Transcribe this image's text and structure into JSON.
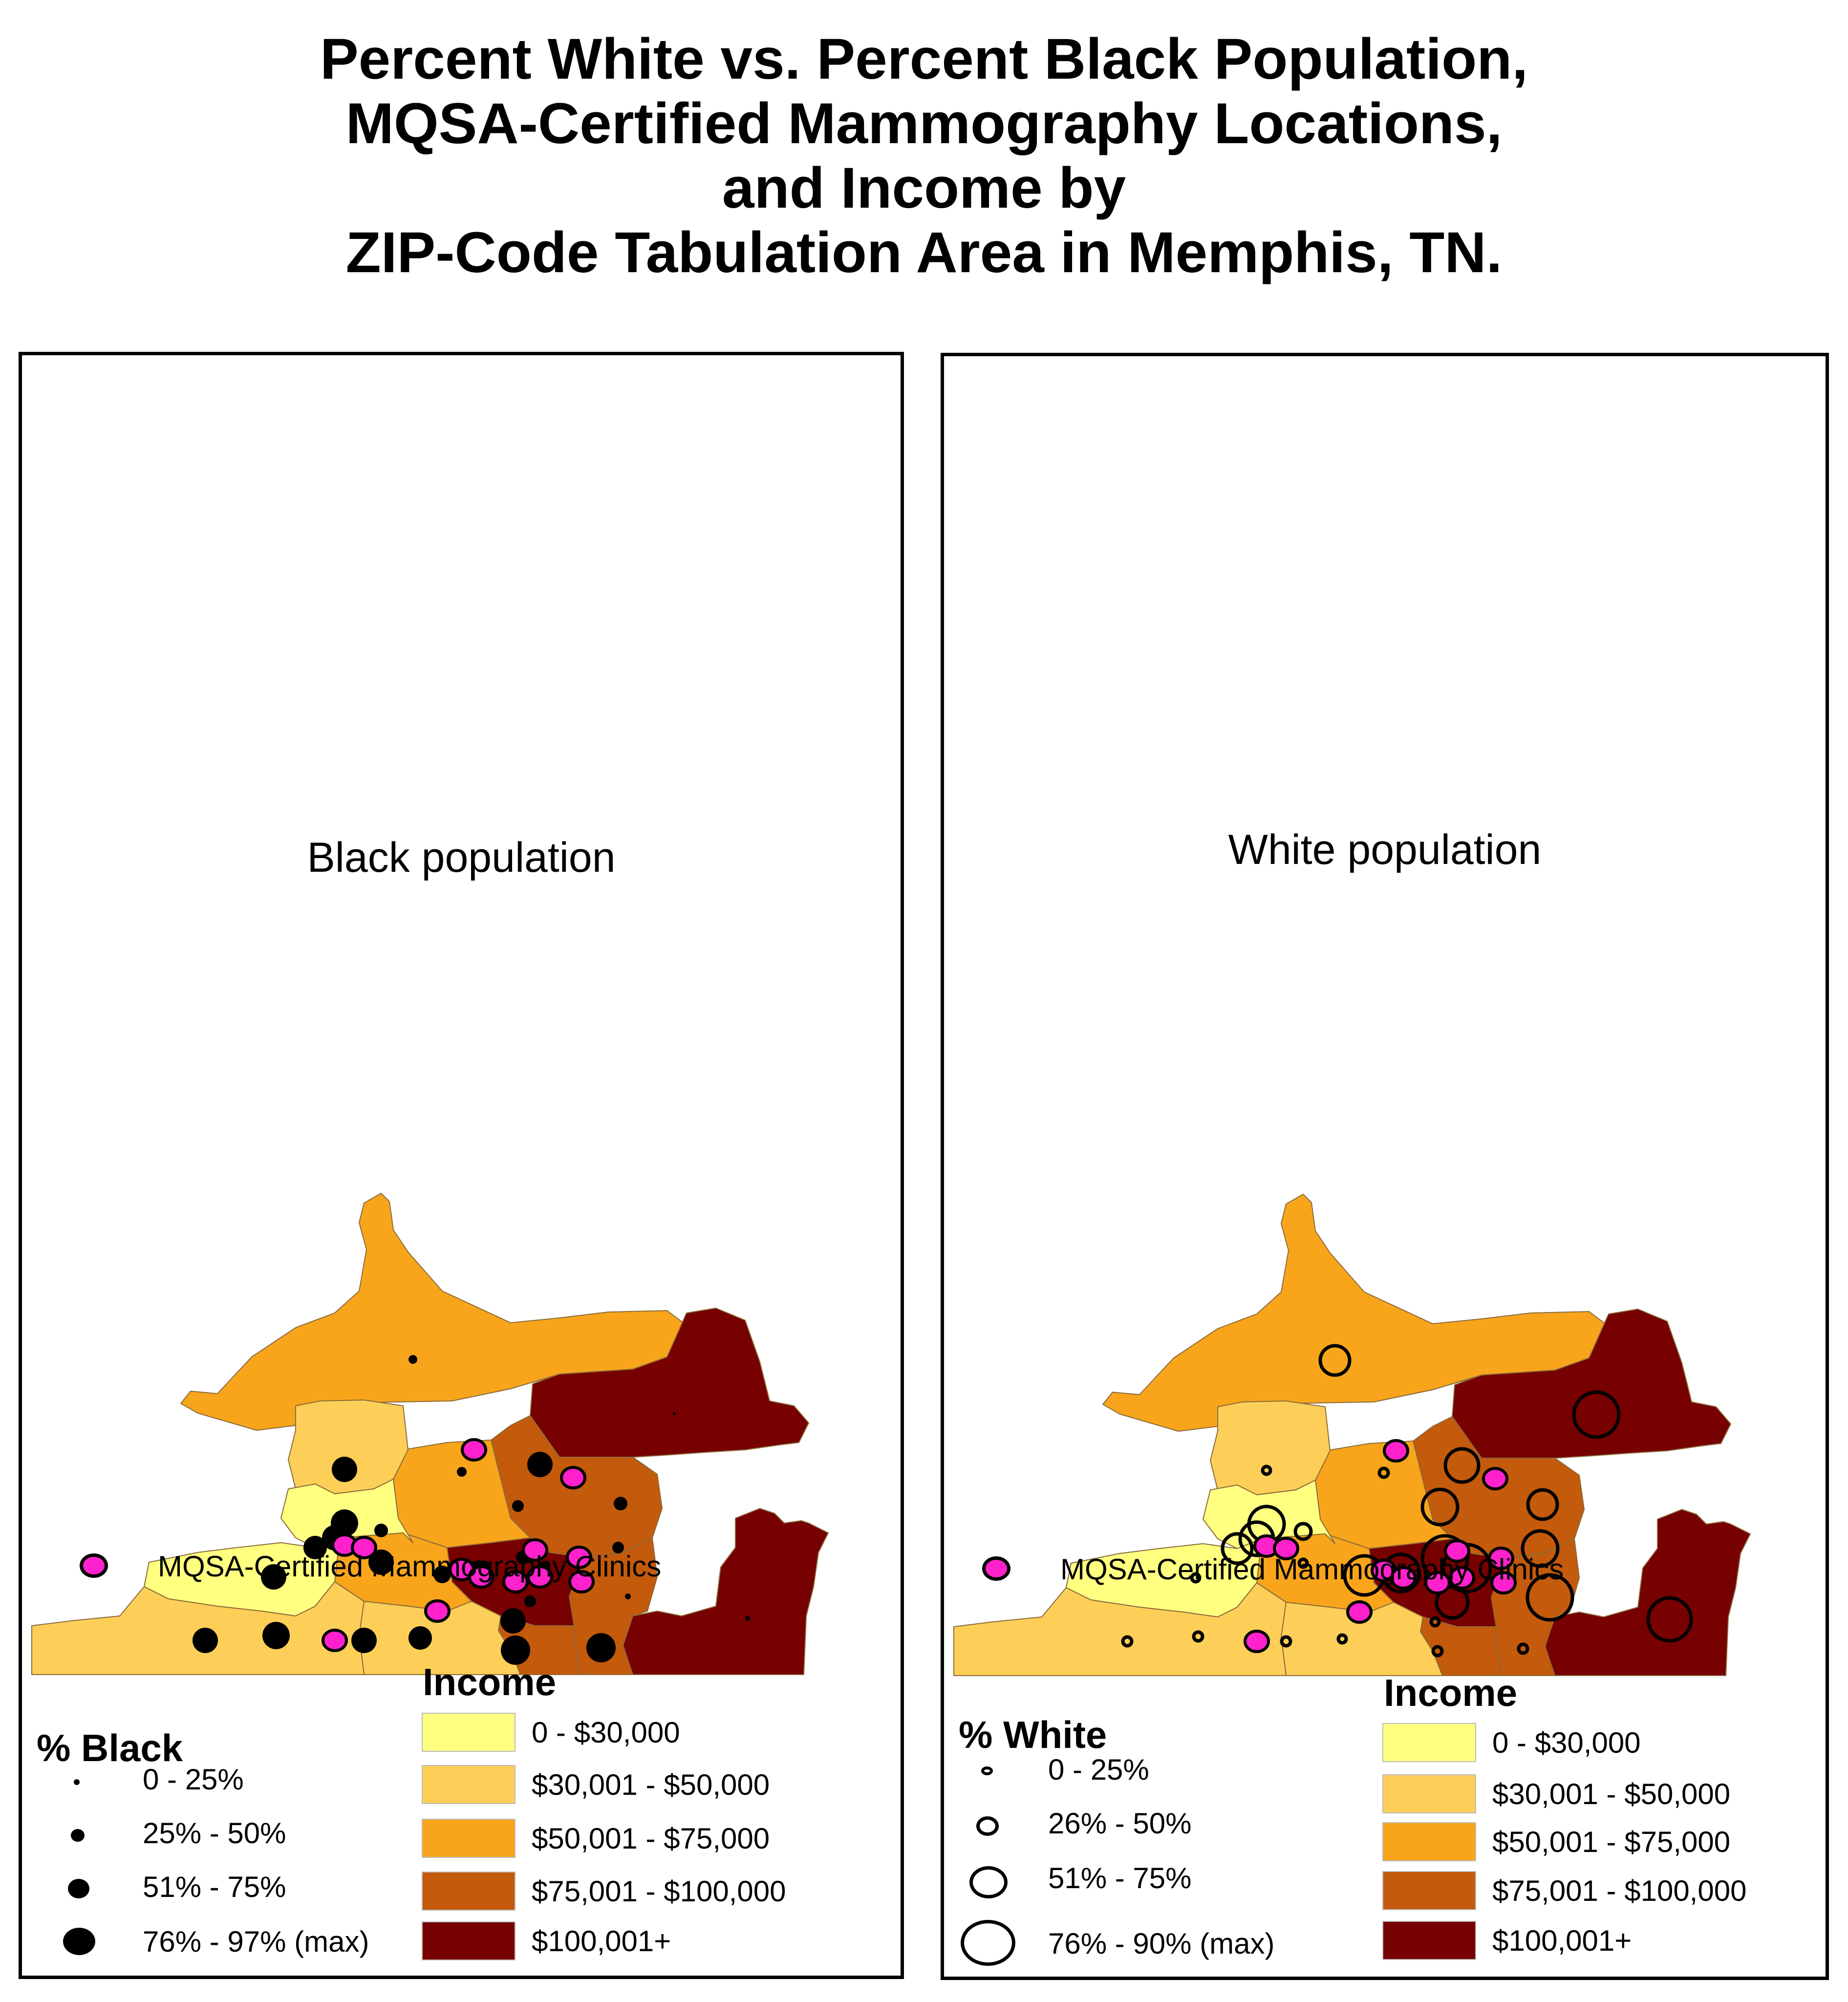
{
  "title_lines": [
    "Percent White vs. Percent Black Population,",
    "MQSA-Certified Mammography Locations,",
    "and Income by",
    "ZIP-Code Tabulation Area in Memphis, TN."
  ],
  "colors": {
    "income_0_30k": "#ffff80",
    "income_30_50k": "#fdcf58",
    "income_50_75k": "#f8a51c",
    "income_75_100k": "#c35a0c",
    "income_100k_plus": "#770000",
    "clinic": "#ff22cc",
    "population_symbol": "#000000"
  },
  "panels": [
    {
      "id": "black",
      "title": "Black population",
      "clinic_legend_label": "MQSA-Certified Mammography Clinics",
      "population_legend_title": "% Black",
      "population_classes": [
        "0 - 25%",
        "25% - 50%",
        "51% - 75%",
        "76% - 97% (max)"
      ],
      "income_legend_title": "Income",
      "income_classes": [
        "0 - $30,000",
        "$30,001 - $50,000",
        "$50,001 - $75,000",
        "$75,001 - $100,000",
        "$100,001+"
      ]
    },
    {
      "id": "white",
      "title": "White population",
      "clinic_legend_label": "MQSA-Certified Mammography Clinics",
      "population_legend_title": "% White",
      "population_classes": [
        "0 - 25%",
        "26% - 50%",
        "51% - 75%",
        "76% - 90% (max)"
      ],
      "income_legend_title": "Income",
      "income_classes": [
        "0 - $30,000",
        "$30,001 - $50,000",
        "$50,001 - $75,000",
        "$75,001 - $100,000",
        "$100,001+"
      ]
    }
  ]
}
